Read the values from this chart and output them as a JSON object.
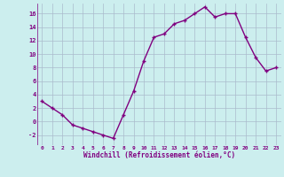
{
  "x": [
    0,
    1,
    2,
    3,
    4,
    5,
    6,
    7,
    8,
    9,
    10,
    11,
    12,
    13,
    14,
    15,
    16,
    17,
    18,
    19,
    20,
    21,
    22,
    23
  ],
  "y": [
    3,
    2,
    1,
    -0.5,
    -1,
    -1.5,
    -2,
    -2.5,
    1,
    4.5,
    9,
    12.5,
    13,
    14.5,
    15,
    16,
    17,
    15.5,
    16,
    16,
    12.5,
    9.5,
    7.5,
    8
  ],
  "line_color": "#800080",
  "marker_color": "#800080",
  "bg_color": "#cceeee",
  "grid_color": "#aabbcc",
  "xlabel": "Windchill (Refroidissement éolien,°C)",
  "xlabel_color": "#800080",
  "tick_color": "#800080",
  "ylim": [
    -3.5,
    17.5
  ],
  "xlim": [
    -0.5,
    23.5
  ],
  "yticks": [
    -2,
    0,
    2,
    4,
    6,
    8,
    10,
    12,
    14,
    16
  ],
  "xticks": [
    0,
    1,
    2,
    3,
    4,
    5,
    6,
    7,
    8,
    9,
    10,
    11,
    12,
    13,
    14,
    15,
    16,
    17,
    18,
    19,
    20,
    21,
    22,
    23
  ],
  "marker_size": 2.5,
  "line_width": 1.0
}
